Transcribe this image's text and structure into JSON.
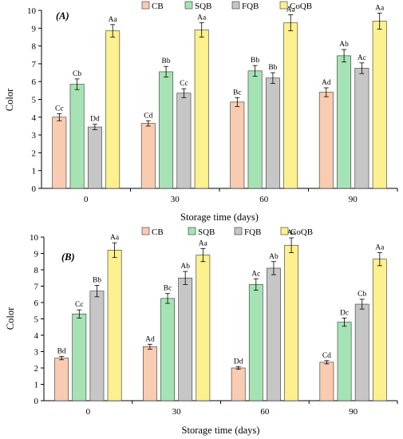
{
  "colors": {
    "CB": "#f9cbb0",
    "SQB": "#a6e3b4",
    "FQB": "#c6c6c6",
    "CoQB": "#fdf08e",
    "stroke": "#333333"
  },
  "chart_data": [
    {
      "type": "bar",
      "panel_label": "(A)",
      "xlabel": "Storage time (days)",
      "ylabel": "Color",
      "ylim": [
        0,
        10
      ],
      "yticks": [
        0,
        1,
        2,
        3,
        4,
        5,
        6,
        7,
        8,
        9,
        10
      ],
      "categories": [
        "0",
        "30",
        "60",
        "90"
      ],
      "legend_position": "top",
      "series": [
        {
          "name": "CB",
          "values": [
            4.0,
            3.65,
            4.85,
            5.4
          ],
          "errors": [
            0.2,
            0.15,
            0.25,
            0.25
          ],
          "labels": [
            "Cc",
            "Cd",
            "Bc",
            "Ad"
          ]
        },
        {
          "name": "SQB",
          "values": [
            5.85,
            6.55,
            6.6,
            7.45
          ],
          "errors": [
            0.3,
            0.3,
            0.3,
            0.35
          ],
          "labels": [
            "Cb",
            "Bb",
            "Bb",
            "Ab"
          ]
        },
        {
          "name": "FQB",
          "values": [
            3.45,
            5.35,
            6.2,
            6.75
          ],
          "errors": [
            0.15,
            0.25,
            0.3,
            0.3
          ],
          "labels": [
            "Dd",
            "Cc",
            "Bb",
            "Ac"
          ]
        },
        {
          "name": "CoQB",
          "values": [
            8.85,
            8.9,
            9.3,
            9.4
          ],
          "errors": [
            0.35,
            0.4,
            0.45,
            0.45
          ],
          "labels": [
            "Aa",
            "Aa",
            "Aa",
            "Aa"
          ]
        }
      ]
    },
    {
      "type": "bar",
      "panel_label": "(B)",
      "xlabel": "Storage time (days)",
      "ylabel": "Color",
      "ylim": [
        0,
        10
      ],
      "yticks": [
        0,
        1,
        2,
        3,
        4,
        5,
        6,
        7,
        8,
        9,
        10
      ],
      "categories": [
        "0",
        "30",
        "60",
        "90"
      ],
      "legend_position": "top",
      "series": [
        {
          "name": "CB",
          "values": [
            2.6,
            3.3,
            2.0,
            2.35
          ],
          "errors": [
            0.1,
            0.15,
            0.08,
            0.1
          ],
          "labels": [
            "Bd",
            "Ad",
            "Dd",
            "Cd"
          ]
        },
        {
          "name": "SQB",
          "values": [
            5.3,
            6.25,
            7.1,
            4.8
          ],
          "errors": [
            0.25,
            0.3,
            0.35,
            0.25
          ],
          "labels": [
            "Cc",
            "Bc",
            "Ac",
            "Dc"
          ]
        },
        {
          "name": "FQB",
          "values": [
            6.7,
            7.5,
            8.1,
            5.9
          ],
          "errors": [
            0.35,
            0.4,
            0.4,
            0.3
          ],
          "labels": [
            "Bb",
            "Ab",
            "Ab",
            "Cb"
          ]
        },
        {
          "name": "CoQB",
          "values": [
            9.2,
            8.9,
            9.5,
            8.65
          ],
          "errors": [
            0.45,
            0.4,
            0.45,
            0.4
          ],
          "labels": [
            "Aa",
            "Aa",
            "Aa",
            "Aa"
          ]
        }
      ]
    }
  ]
}
